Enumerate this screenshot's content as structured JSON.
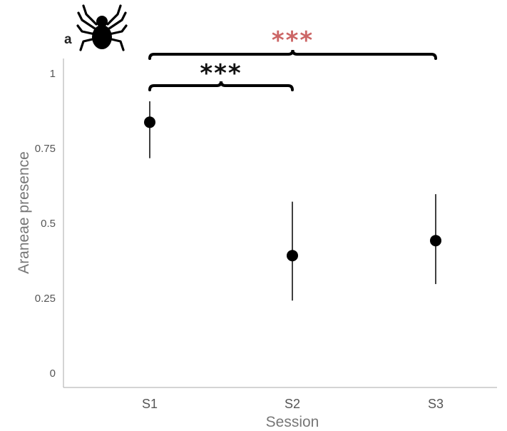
{
  "chart_data": {
    "type": "scatter",
    "panel_label": "a",
    "xlabel": "Session",
    "ylabel": "Araneae presence",
    "categories": [
      "S1",
      "S2",
      "S3"
    ],
    "ylim": [
      0,
      1
    ],
    "yticks": [
      "0",
      "0.25",
      "0.5",
      "0.75",
      "1"
    ],
    "grid": false,
    "icon": "spider-icon",
    "series": [
      {
        "points": [
          {
            "x": "S1",
            "y": 0.835,
            "lower": 0.715,
            "upper": 0.905
          },
          {
            "x": "S2",
            "y": 0.39,
            "lower": 0.24,
            "upper": 0.57
          },
          {
            "x": "S3",
            "y": 0.44,
            "lower": 0.295,
            "upper": 0.595
          }
        ]
      }
    ],
    "annotations": [
      {
        "from": "S1",
        "to": "S3",
        "label": "***",
        "color": "#cc6666"
      },
      {
        "from": "S1",
        "to": "S2",
        "label": "***",
        "color": "#111111"
      }
    ],
    "colors": {
      "point": "#000000",
      "axis": "#aaaaaa"
    }
  }
}
